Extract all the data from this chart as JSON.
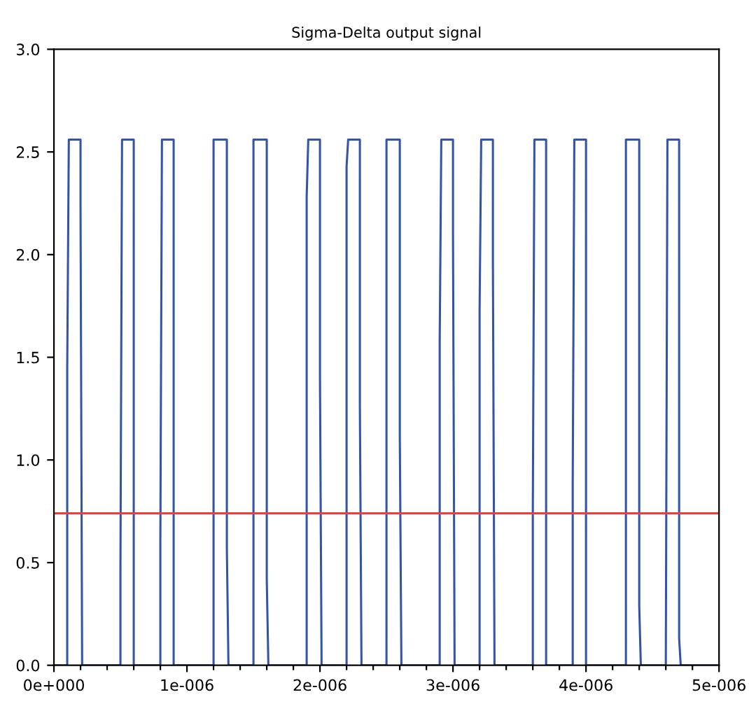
{
  "chart_data": {
    "type": "line",
    "title": "Sigma-Delta output signal",
    "xlim": [
      0,
      5e-06
    ],
    "ylim": [
      0,
      3.0
    ],
    "xticks": [
      {
        "value": 0,
        "label": "0e+000"
      },
      {
        "value": 2e-07,
        "label": null
      },
      {
        "value": 4e-07,
        "label": null
      },
      {
        "value": 6e-07,
        "label": null
      },
      {
        "value": 8e-07,
        "label": null
      },
      {
        "value": 1e-06,
        "label": "1e-006"
      },
      {
        "value": 1.2e-06,
        "label": null
      },
      {
        "value": 1.4e-06,
        "label": null
      },
      {
        "value": 1.6e-06,
        "label": null
      },
      {
        "value": 1.8e-06,
        "label": null
      },
      {
        "value": 2e-06,
        "label": "2e-006"
      },
      {
        "value": 2.2e-06,
        "label": null
      },
      {
        "value": 2.4e-06,
        "label": null
      },
      {
        "value": 2.6e-06,
        "label": null
      },
      {
        "value": 2.8e-06,
        "label": null
      },
      {
        "value": 3e-06,
        "label": "3e-006"
      },
      {
        "value": 3.2e-06,
        "label": null
      },
      {
        "value": 3.4e-06,
        "label": null
      },
      {
        "value": 3.6e-06,
        "label": null
      },
      {
        "value": 3.8e-06,
        "label": null
      },
      {
        "value": 4e-06,
        "label": "4e-006"
      },
      {
        "value": 4.2e-06,
        "label": null
      },
      {
        "value": 4.4e-06,
        "label": null
      },
      {
        "value": 4.6e-06,
        "label": null
      },
      {
        "value": 4.8e-06,
        "label": null
      },
      {
        "value": 5e-06,
        "label": "5e-006"
      }
    ],
    "yticks": [
      {
        "value": 0,
        "label": "0.0"
      },
      {
        "value": 0.5,
        "label": "0.5"
      },
      {
        "value": 1.0,
        "label": "1.0"
      },
      {
        "value": 1.5,
        "label": "1.5"
      },
      {
        "value": 2.0,
        "label": "2.0"
      },
      {
        "value": 2.5,
        "label": "2.5"
      },
      {
        "value": 3.0,
        "label": "3.0"
      }
    ],
    "grid": false,
    "marker": "none",
    "line_style": "solid",
    "ref_lines": [
      {
        "axis": "y",
        "value": 0.74,
        "label": null,
        "color": "#e84040"
      }
    ],
    "series": [
      {
        "color": "#3454a8",
        "x": [
          0,
          1e-07,
          1e-07,
          1.12e-07,
          2e-07,
          2e-07,
          2.12e-07,
          5e-07,
          5e-07,
          5.12e-07,
          6e-07,
          6e-07,
          8e-07,
          8e-07,
          8.12e-07,
          9e-07,
          9e-07,
          1.2e-06,
          1.2e-06,
          1.3e-06,
          1.3e-06,
          1.312e-06,
          1.5e-06,
          1.5e-06,
          1.6e-06,
          1.6e-06,
          1.612e-06,
          1.9e-06,
          1.9e-06,
          1.912e-06,
          2e-06,
          2e-06,
          2.012e-06,
          2.2e-06,
          2.2e-06,
          2.212e-06,
          2.3e-06,
          2.3e-06,
          2.312e-06,
          2.5e-06,
          2.5e-06,
          2.6e-06,
          2.6e-06,
          2.612e-06,
          2.9e-06,
          2.9e-06,
          2.912e-06,
          3e-06,
          3e-06,
          3.012e-06,
          3.2e-06,
          3.2e-06,
          3.212e-06,
          3.3e-06,
          3.3e-06,
          3.312e-06,
          3.6e-06,
          3.6e-06,
          3.612e-06,
          3.7e-06,
          3.7e-06,
          3.9e-06,
          3.9e-06,
          3.912e-06,
          4e-06,
          4e-06,
          4.3e-06,
          4.3e-06,
          4.4e-06,
          4.4e-06,
          4.412e-06,
          4.6e-06,
          4.6e-06,
          4.612e-06,
          4.7e-06,
          4.7e-06,
          4.712e-06,
          5e-06
        ],
        "values": [
          0,
          0,
          1.45,
          2.56,
          2.56,
          2.23,
          0,
          0,
          0.47,
          2.56,
          2.56,
          0,
          0,
          0.6,
          2.56,
          2.56,
          0,
          0,
          2.56,
          2.56,
          0.57,
          0,
          0,
          2.56,
          2.56,
          0.42,
          0,
          0,
          2.28,
          2.56,
          2.56,
          1.4,
          0,
          0,
          2.43,
          2.56,
          2.56,
          1.26,
          0,
          0,
          2.56,
          2.56,
          1.13,
          0,
          0,
          1.57,
          2.56,
          2.56,
          2.1,
          0,
          0,
          1.73,
          2.56,
          2.56,
          1.96,
          0,
          0,
          0.74,
          2.56,
          2.56,
          0,
          0,
          0.88,
          2.56,
          2.56,
          0,
          0,
          2.56,
          2.56,
          0.29,
          0,
          0,
          0.04,
          2.56,
          2.56,
          0.13,
          0,
          0
        ]
      }
    ]
  }
}
